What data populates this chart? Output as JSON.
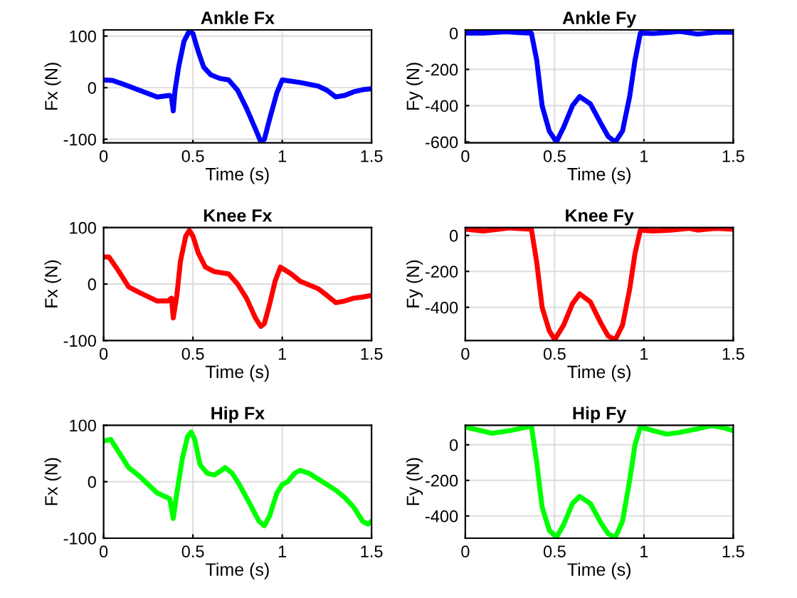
{
  "chart_data": [
    {
      "type": "line",
      "title": "Ankle Fx",
      "xlabel": "Time (s)",
      "ylabel": "Fx (N)",
      "xlim": [
        0,
        1.5
      ],
      "xticks": [
        0,
        0.5,
        1,
        1.5
      ],
      "ylim": [
        -107,
        112
      ],
      "yticks": [
        -100,
        0,
        100
      ],
      "grid": true,
      "line_style": "solid",
      "marker": "none",
      "series": [
        {
          "color": "#0000ff",
          "x": [
            0,
            0.05,
            0.1,
            0.2,
            0.3,
            0.37,
            0.38,
            0.39,
            0.4,
            0.42,
            0.45,
            0.48,
            0.5,
            0.53,
            0.56,
            0.6,
            0.65,
            0.7,
            0.75,
            0.8,
            0.85,
            0.88,
            0.9,
            0.93,
            0.97,
            1.0,
            1.1,
            1.2,
            1.25,
            1.3,
            1.35,
            1.4,
            1.45,
            1.5
          ],
          "values": [
            15,
            14,
            8,
            -5,
            -18,
            -15,
            -18,
            -45,
            -5,
            40,
            90,
            110,
            105,
            70,
            40,
            25,
            18,
            15,
            -5,
            -40,
            -80,
            -105,
            -100,
            -60,
            -10,
            15,
            10,
            3,
            -5,
            -18,
            -15,
            -8,
            -4,
            -2
          ]
        }
      ]
    },
    {
      "type": "line",
      "title": "Ankle Fy",
      "xlabel": "Time (s)",
      "ylabel": "Fy (N)",
      "xlim": [
        0,
        1.5
      ],
      "xticks": [
        0,
        0.5,
        1,
        1.5
      ],
      "ylim": [
        -605,
        18
      ],
      "yticks": [
        -600,
        -400,
        -200,
        0
      ],
      "grid": true,
      "line_style": "solid",
      "marker": "none",
      "series": [
        {
          "color": "#0000ff",
          "x": [
            0,
            0.1,
            0.23,
            0.3,
            0.37,
            0.4,
            0.43,
            0.47,
            0.51,
            0.55,
            0.6,
            0.64,
            0.7,
            0.76,
            0.8,
            0.84,
            0.88,
            0.92,
            0.95,
            0.98,
            1.05,
            1.15,
            1.2,
            1.3,
            1.4,
            1.5
          ],
          "values": [
            0,
            0,
            8,
            3,
            0,
            -150,
            -400,
            -540,
            -600,
            -520,
            -400,
            -350,
            -390,
            -500,
            -570,
            -600,
            -540,
            -350,
            -150,
            0,
            -2,
            5,
            10,
            -5,
            5,
            5
          ]
        }
      ]
    },
    {
      "type": "line",
      "title": "Knee Fx",
      "xlabel": "Time (s)",
      "ylabel": "Fx (N)",
      "xlim": [
        0,
        1.5
      ],
      "xticks": [
        0,
        0.5,
        1,
        1.5
      ],
      "ylim": [
        -100,
        100
      ],
      "yticks": [
        -100,
        0,
        100
      ],
      "grid": true,
      "line_style": "solid",
      "marker": "none",
      "series": [
        {
          "color": "#ff0000",
          "x": [
            0,
            0.03,
            0.08,
            0.14,
            0.2,
            0.3,
            0.36,
            0.38,
            0.39,
            0.41,
            0.43,
            0.46,
            0.48,
            0.5,
            0.53,
            0.57,
            0.62,
            0.66,
            0.7,
            0.75,
            0.8,
            0.85,
            0.88,
            0.9,
            0.93,
            0.96,
            0.99,
            1.05,
            1.1,
            1.2,
            1.25,
            1.3,
            1.35,
            1.4,
            1.45,
            1.5
          ],
          "values": [
            48,
            48,
            25,
            -5,
            -15,
            -30,
            -30,
            -25,
            -60,
            -20,
            40,
            85,
            95,
            85,
            55,
            30,
            22,
            20,
            18,
            0,
            -25,
            -60,
            -75,
            -70,
            -35,
            5,
            30,
            18,
            5,
            -8,
            -20,
            -33,
            -30,
            -25,
            -23,
            -20
          ]
        }
      ]
    },
    {
      "type": "line",
      "title": "Knee Fy",
      "xlabel": "Time (s)",
      "ylabel": "Fy (N)",
      "xlim": [
        0,
        1.5
      ],
      "xticks": [
        0,
        0.5,
        1,
        1.5
      ],
      "ylim": [
        -585,
        44
      ],
      "yticks": [
        -400,
        -200,
        0
      ],
      "grid": true,
      "line_style": "solid",
      "marker": "none",
      "series": [
        {
          "color": "#ff0000",
          "x": [
            0,
            0.1,
            0.25,
            0.37,
            0.4,
            0.43,
            0.47,
            0.5,
            0.55,
            0.6,
            0.64,
            0.7,
            0.76,
            0.8,
            0.84,
            0.88,
            0.92,
            0.95,
            0.98,
            1.05,
            1.15,
            1.25,
            1.3,
            1.4,
            1.5
          ],
          "values": [
            35,
            25,
            42,
            35,
            -150,
            -400,
            -530,
            -580,
            -500,
            -380,
            -325,
            -370,
            -490,
            -560,
            -580,
            -500,
            -300,
            -100,
            30,
            25,
            30,
            40,
            30,
            40,
            35
          ]
        }
      ]
    },
    {
      "type": "line",
      "title": "Hip Fx",
      "xlabel": "Time (s)",
      "ylabel": "Fx (N)",
      "xlim": [
        0,
        1.5
      ],
      "xticks": [
        0,
        0.5,
        1,
        1.5
      ],
      "ylim": [
        -100,
        100
      ],
      "yticks": [
        -100,
        0,
        100
      ],
      "grid": true,
      "line_style": "solid",
      "marker": "none",
      "series": [
        {
          "color": "#00ff00",
          "x": [
            0,
            0.04,
            0.08,
            0.14,
            0.2,
            0.25,
            0.3,
            0.37,
            0.39,
            0.41,
            0.44,
            0.47,
            0.49,
            0.51,
            0.54,
            0.58,
            0.62,
            0.66,
            0.68,
            0.72,
            0.76,
            0.82,
            0.87,
            0.9,
            0.93,
            0.97,
            1.0,
            1.03,
            1.07,
            1.1,
            1.15,
            1.2,
            1.25,
            1.3,
            1.35,
            1.4,
            1.45,
            1.48,
            1.5
          ],
          "values": [
            72,
            75,
            55,
            25,
            10,
            -5,
            -20,
            -30,
            -65,
            -20,
            40,
            80,
            88,
            75,
            30,
            15,
            12,
            20,
            25,
            15,
            -5,
            -40,
            -70,
            -78,
            -60,
            -20,
            -5,
            0,
            15,
            20,
            15,
            5,
            -5,
            -15,
            -28,
            -45,
            -70,
            -75,
            -70
          ]
        }
      ]
    },
    {
      "type": "line",
      "title": "Hip Fy",
      "xlabel": "Time (s)",
      "ylabel": "Fy (N)",
      "xlim": [
        0,
        1.5
      ],
      "xticks": [
        0,
        0.5,
        1,
        1.5
      ],
      "ylim": [
        -525,
        110
      ],
      "yticks": [
        -400,
        -200,
        0
      ],
      "grid": true,
      "line_style": "solid",
      "marker": "none",
      "series": [
        {
          "color": "#00ff00",
          "x": [
            0,
            0.15,
            0.25,
            0.37,
            0.4,
            0.43,
            0.47,
            0.51,
            0.55,
            0.6,
            0.64,
            0.7,
            0.76,
            0.8,
            0.84,
            0.88,
            0.92,
            0.95,
            0.98,
            1.05,
            1.13,
            1.2,
            1.3,
            1.38,
            1.45,
            1.5
          ],
          "values": [
            100,
            65,
            80,
            105,
            -100,
            -350,
            -480,
            -520,
            -450,
            -330,
            -290,
            -330,
            -440,
            -500,
            -520,
            -430,
            -200,
            0,
            100,
            80,
            60,
            70,
            90,
            108,
            95,
            80
          ]
        }
      ]
    }
  ]
}
